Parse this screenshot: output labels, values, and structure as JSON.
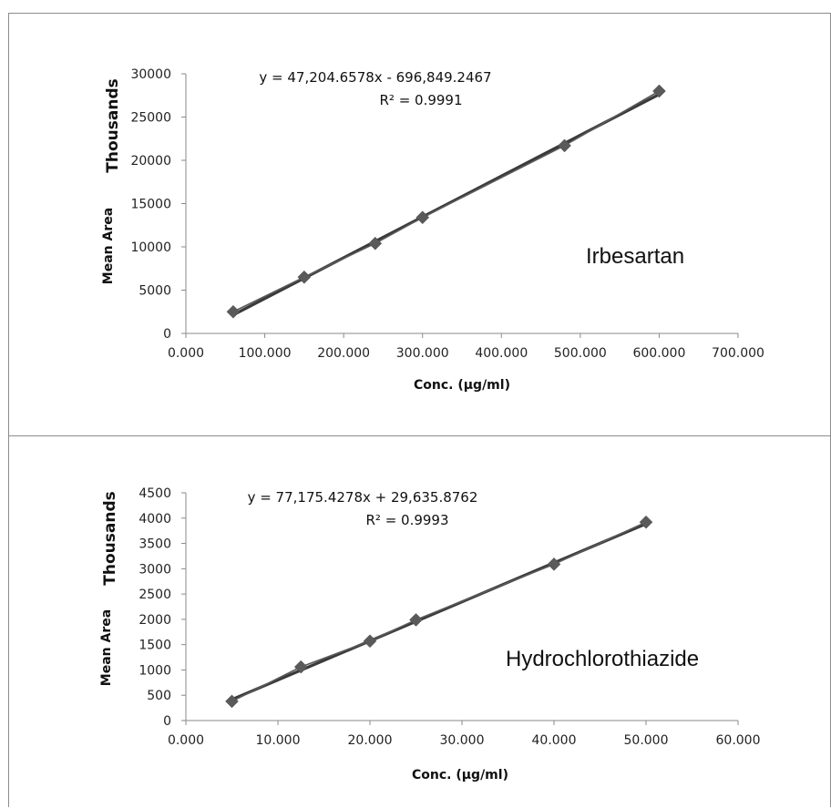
{
  "chart_data": [
    {
      "type": "scatter",
      "xlabel": "Conc. (µg/ml)",
      "ylabel": "Mean Area",
      "y_units_label": "Thousands",
      "annotation": "Irbesartan",
      "trendline": {
        "equation": "y = 47,204.6578x - 696,849.2467",
        "r_squared": "R² = 0.9991",
        "slope": 47204.6578,
        "intercept": -696849.2467
      },
      "x": [
        60,
        150,
        240,
        300,
        480,
        600
      ],
      "y": [
        2500,
        6500,
        10400,
        13400,
        21700,
        28000
      ],
      "xlim": [
        0,
        700
      ],
      "ylim": [
        0,
        30000
      ],
      "x_ticks": [
        0,
        100,
        200,
        300,
        400,
        500,
        600,
        700
      ],
      "y_ticks": [
        0,
        5000,
        10000,
        15000,
        20000,
        25000,
        30000
      ],
      "x_tick_labels": [
        "0.000",
        "100.000",
        "200.000",
        "300.000",
        "400.000",
        "500.000",
        "600.000",
        "700.000"
      ],
      "y_tick_labels": [
        "0",
        "5000",
        "10000",
        "15000",
        "20000",
        "25000",
        "30000"
      ],
      "grid": false,
      "legend": "none",
      "marker": "diamond",
      "color": "#5a5a5a"
    },
    {
      "type": "scatter",
      "xlabel": "Conc. (µg/ml)",
      "ylabel": "Mean Area",
      "y_units_label": "Thousands",
      "annotation": "Hydrochlorothiazide",
      "trendline": {
        "equation": "y = 77,175.4278x + 29,635.8762",
        "r_squared": "R² = 0.9993",
        "slope": 77175.4278,
        "intercept": 29635.8762
      },
      "x": [
        5,
        12.5,
        20,
        25,
        40,
        50
      ],
      "y": [
        380,
        1060,
        1570,
        1990,
        3090,
        3920
      ],
      "xlim": [
        0,
        60
      ],
      "ylim": [
        0,
        4500
      ],
      "x_ticks": [
        0,
        10,
        20,
        30,
        40,
        50,
        60
      ],
      "y_ticks": [
        0,
        500,
        1000,
        1500,
        2000,
        2500,
        3000,
        3500,
        4000,
        4500
      ],
      "x_tick_labels": [
        "0.000",
        "10.000",
        "20.000",
        "30.000",
        "40.000",
        "50.000",
        "60.000"
      ],
      "y_tick_labels": [
        "0",
        "500",
        "1000",
        "1500",
        "2000",
        "2500",
        "3000",
        "3500",
        "4000",
        "4500"
      ],
      "grid": false,
      "legend": "none",
      "marker": "diamond",
      "color": "#5a5a5a"
    }
  ]
}
